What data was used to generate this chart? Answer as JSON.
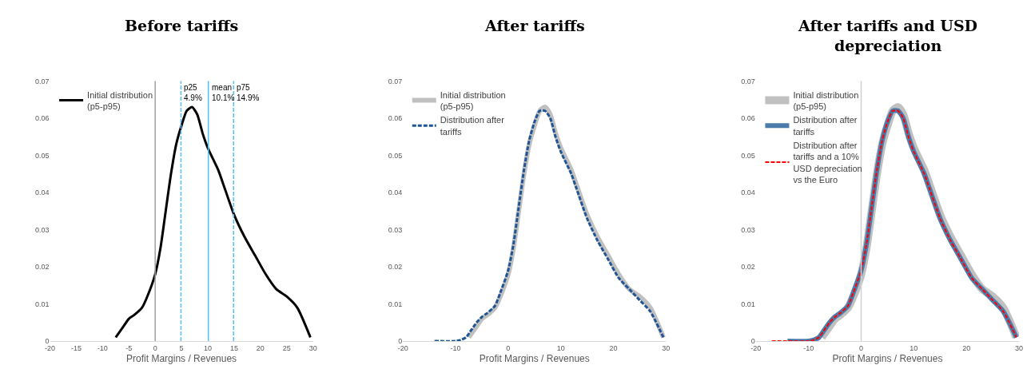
{
  "chart_data": [
    {
      "type": "line",
      "title": "Before tariffs",
      "xlabel": "Profit Margins / Revenues",
      "xlim": [
        -20,
        30
      ],
      "xticks": [
        -20,
        -15,
        -10,
        -5,
        0,
        5,
        10,
        15,
        20,
        25,
        30
      ],
      "ylim": [
        0,
        0.07
      ],
      "yticks": [
        0,
        0.01,
        0.02,
        0.03,
        0.04,
        0.05,
        0.06,
        0.07
      ],
      "legend": "top left",
      "series": [
        {
          "name": "Initial distribution\n(p5-p95)",
          "color": "#000000",
          "x": [
            -7.5,
            -6,
            -5,
            -4,
            -2.5,
            -1.5,
            0,
            1,
            2,
            3,
            4,
            5,
            6,
            7,
            8,
            9,
            10,
            12,
            13,
            15,
            17,
            19,
            21,
            23,
            25,
            27,
            29.5
          ],
          "values": [
            0.001,
            0.004,
            0.006,
            0.007,
            0.009,
            0.012,
            0.018,
            0.025,
            0.035,
            0.045,
            0.053,
            0.058,
            0.062,
            0.063,
            0.061,
            0.056,
            0.052,
            0.046,
            0.042,
            0.034,
            0.028,
            0.023,
            0.018,
            0.014,
            0.012,
            0.009,
            0.001
          ]
        }
      ],
      "ref_lines": [
        {
          "axis": "x",
          "value": 0,
          "label": null,
          "color": "#a0a0a0",
          "line_style": "solid"
        },
        {
          "axis": "x",
          "value": 4.9,
          "label": "p25\n4.9%",
          "color": "#4fc3f7",
          "line_style": "dashed"
        },
        {
          "axis": "x",
          "value": 10.1,
          "label": "mean\n10.1%",
          "color": "#4fc3f7",
          "line_style": "solid"
        },
        {
          "axis": "x",
          "value": 14.9,
          "label": "p75\n14.9%",
          "color": "#4fc3f7",
          "line_style": "dashed"
        }
      ]
    },
    {
      "type": "line",
      "title": "After tariffs",
      "xlabel": "Profit Margins / Revenues",
      "xlim": [
        -20,
        30
      ],
      "xticks": [
        -20,
        -10,
        0,
        10,
        20,
        30
      ],
      "ylim": [
        0,
        0.07
      ],
      "yticks": [
        0,
        0.01,
        0.02,
        0.03,
        0.04,
        0.05,
        0.06,
        0.07
      ],
      "legend": "top left",
      "series": [
        {
          "name": "Initial distribution\n(p5-p95)",
          "color": "#c0c0c0",
          "line_style": "solid",
          "x": [
            -7.5,
            -6,
            -5,
            -4,
            -2.5,
            -1.5,
            0,
            1,
            2,
            3,
            4,
            5,
            6,
            7,
            8,
            9,
            10,
            12,
            13,
            15,
            17,
            19,
            21,
            23,
            25,
            27,
            29.5
          ],
          "values": [
            0.001,
            0.004,
            0.006,
            0.007,
            0.009,
            0.012,
            0.018,
            0.025,
            0.035,
            0.045,
            0.053,
            0.058,
            0.062,
            0.063,
            0.061,
            0.056,
            0.052,
            0.046,
            0.042,
            0.034,
            0.028,
            0.023,
            0.018,
            0.014,
            0.012,
            0.009,
            0.001
          ]
        },
        {
          "name": "Distribution after\ntariffs",
          "color": "#1f5596",
          "line_style": "dashed",
          "x": [
            -14,
            -10,
            -9,
            -8,
            -7,
            -6,
            -5,
            -4,
            -2.5,
            -1.5,
            0,
            1,
            2,
            3,
            4,
            5,
            6,
            7,
            8,
            9,
            10,
            12,
            13,
            15,
            17,
            19,
            21,
            23,
            25,
            27,
            29.5
          ],
          "values": [
            0,
            0,
            0.0003,
            0.001,
            0.003,
            0.005,
            0.0065,
            0.0075,
            0.0095,
            0.013,
            0.019,
            0.026,
            0.036,
            0.046,
            0.054,
            0.059,
            0.062,
            0.062,
            0.06,
            0.055,
            0.051,
            0.045,
            0.041,
            0.033,
            0.027,
            0.022,
            0.017,
            0.014,
            0.011,
            0.008,
            0.001
          ]
        }
      ]
    },
    {
      "type": "line",
      "title": "After tariffs and USD\ndepreciation",
      "xlabel": "Profit Margins / Revenues",
      "xlim": [
        -20,
        30
      ],
      "xticks": [
        -20,
        -10,
        0,
        10,
        20,
        30
      ],
      "ylim": [
        0,
        0.07
      ],
      "yticks": [
        0,
        0.01,
        0.02,
        0.03,
        0.04,
        0.05,
        0.06,
        0.07
      ],
      "legend": "top left",
      "series": [
        {
          "name": "Initial distribution\n(p5-p95)",
          "color": "#c0c0c0",
          "line_style": "solid",
          "x": [
            -7.5,
            -6,
            -5,
            -4,
            -2.5,
            -1.5,
            0,
            1,
            2,
            3,
            4,
            5,
            6,
            7,
            8,
            9,
            10,
            12,
            13,
            15,
            17,
            19,
            21,
            23,
            25,
            27,
            29.5
          ],
          "values": [
            0.001,
            0.004,
            0.006,
            0.007,
            0.009,
            0.012,
            0.018,
            0.025,
            0.035,
            0.045,
            0.053,
            0.058,
            0.062,
            0.063,
            0.061,
            0.056,
            0.052,
            0.046,
            0.042,
            0.034,
            0.028,
            0.023,
            0.018,
            0.014,
            0.012,
            0.009,
            0.001
          ]
        },
        {
          "name": "Distribution after\ntariffs",
          "color": "#4a7bab",
          "line_style": "solid",
          "x": [
            -14,
            -10,
            -9,
            -8,
            -7,
            -6,
            -5,
            -4,
            -2.5,
            -1.5,
            0,
            1,
            2,
            3,
            4,
            5,
            6,
            7,
            8,
            9,
            10,
            12,
            13,
            15,
            17,
            19,
            21,
            23,
            25,
            27,
            29.5
          ],
          "values": [
            0,
            0,
            0.0003,
            0.001,
            0.003,
            0.005,
            0.0065,
            0.0075,
            0.0095,
            0.013,
            0.019,
            0.026,
            0.036,
            0.046,
            0.054,
            0.059,
            0.062,
            0.062,
            0.06,
            0.055,
            0.051,
            0.045,
            0.041,
            0.033,
            0.027,
            0.022,
            0.017,
            0.014,
            0.011,
            0.008,
            0.001
          ]
        },
        {
          "name": "Distribution after\ntariffs and a 10%\nUSD depreciation\nvs the Euro",
          "color": "#ff0000",
          "line_style": "dashed",
          "x": [
            -17,
            -14,
            -10,
            -9,
            -8,
            -7,
            -6,
            -5,
            -4,
            -2.5,
            -1.5,
            0,
            1,
            2,
            3,
            4,
            5,
            6,
            7,
            8,
            9,
            10,
            12,
            13,
            15,
            17,
            19,
            21,
            23,
            25,
            27,
            29.5
          ],
          "values": [
            0,
            0,
            0,
            0.0003,
            0.001,
            0.003,
            0.005,
            0.0065,
            0.0075,
            0.0095,
            0.013,
            0.019,
            0.026,
            0.036,
            0.046,
            0.054,
            0.059,
            0.062,
            0.062,
            0.06,
            0.055,
            0.051,
            0.045,
            0.041,
            0.033,
            0.027,
            0.022,
            0.017,
            0.014,
            0.011,
            0.008,
            0.001
          ]
        }
      ],
      "ref_lines": [
        {
          "axis": "x",
          "value": 0,
          "label": null,
          "color": "#d0d0d0",
          "line_style": "solid"
        }
      ]
    }
  ]
}
